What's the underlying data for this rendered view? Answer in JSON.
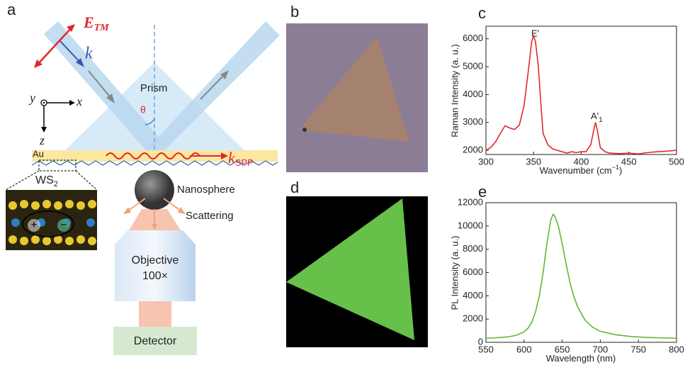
{
  "panel_labels": {
    "a": "a",
    "b": "b",
    "c": "c",
    "d": "d",
    "e": "e"
  },
  "diagram": {
    "field": {
      "text": "E",
      "sub": "TM"
    },
    "wavevector": "k",
    "prism": "Prism",
    "angle": "θ",
    "axes": {
      "y": "y",
      "x": "x",
      "z": "z"
    },
    "metal": "Au",
    "spp": {
      "text": "k",
      "sub": "SPP"
    },
    "material": {
      "text": "WS",
      "sub": "2"
    },
    "charges": [
      "+",
      "−"
    ],
    "nanosphere": "Nanosphere",
    "scattering": "Scattering",
    "objective": [
      "Objective",
      "100×"
    ],
    "detector": "Detector"
  },
  "chart_data": [
    {
      "type": "line",
      "xlabel": {
        "text": "Wavenumber (cm",
        "sup": "−1",
        "end": ")"
      },
      "ylabel": "Raman Intensity (a. u.)",
      "color": "#e0282a",
      "x": [
        300,
        305,
        310,
        315,
        320,
        325,
        330,
        335,
        340,
        345,
        348,
        350,
        352,
        355,
        358,
        360,
        365,
        370,
        375,
        380,
        385,
        390,
        395,
        400,
        405,
        410,
        413,
        415,
        417,
        420,
        425,
        430,
        440,
        450,
        460,
        470,
        480,
        490,
        500
      ],
      "values": [
        2000,
        2100,
        2300,
        2600,
        2880,
        2800,
        2750,
        2900,
        3600,
        5000,
        5900,
        6100,
        5900,
        5000,
        3500,
        2600,
        2200,
        2050,
        2000,
        1950,
        1900,
        1950,
        1920,
        1950,
        1950,
        2200,
        2700,
        3000,
        2700,
        2100,
        1950,
        1900,
        1880,
        1900,
        1870,
        1920,
        1950,
        1970,
        2000
      ],
      "peak_labels": [
        {
          "text": "E'"
        },
        {
          "text": "A'",
          "sub": "1"
        }
      ],
      "xlim": [
        300,
        500
      ],
      "xticks": [
        300,
        350,
        400,
        450,
        500
      ],
      "ylim": [
        1850,
        6450
      ],
      "yticks": [
        2000,
        3000,
        4000,
        5000,
        6000
      ]
    },
    {
      "type": "line",
      "xlabel": {
        "text": "Wavelength (nm)"
      },
      "ylabel": "PL Intensity (a. u.)",
      "color": "#5fb832",
      "x": [
        550,
        560,
        570,
        580,
        590,
        600,
        605,
        610,
        615,
        620,
        625,
        630,
        635,
        638,
        640,
        645,
        650,
        655,
        660,
        665,
        670,
        680,
        690,
        700,
        720,
        740,
        760,
        780,
        800
      ],
      "values": [
        350,
        380,
        420,
        480,
        600,
        900,
        1200,
        1700,
        2600,
        4000,
        6000,
        8500,
        10500,
        11000,
        10900,
        10000,
        8500,
        6800,
        5200,
        4000,
        3100,
        1900,
        1300,
        950,
        650,
        500,
        420,
        380,
        350
      ],
      "xlim": [
        550,
        800
      ],
      "xticks": [
        550,
        600,
        650,
        700,
        750,
        800
      ],
      "ylim": [
        0,
        12000
      ],
      "yticks": [
        0,
        2000,
        4000,
        6000,
        8000,
        10000,
        12000
      ]
    }
  ]
}
